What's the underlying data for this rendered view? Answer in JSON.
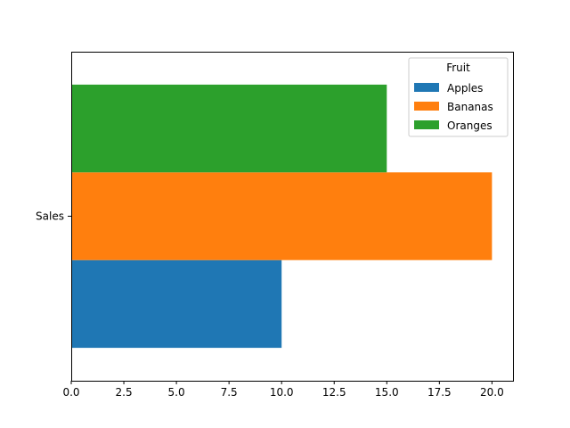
{
  "chart_data": {
    "type": "bar",
    "orientation": "horizontal",
    "categories": [
      "Sales"
    ],
    "series": [
      {
        "name": "Apples",
        "values": [
          10
        ],
        "color": "#1f77b4"
      },
      {
        "name": "Bananas",
        "values": [
          20
        ],
        "color": "#ff7f0e"
      },
      {
        "name": "Oranges",
        "values": [
          15
        ],
        "color": "#2ca02c"
      }
    ],
    "xlim": [
      0,
      21
    ],
    "xticks": [
      "0.0",
      "2.5",
      "5.0",
      "7.5",
      "10.0",
      "12.5",
      "15.0",
      "17.5",
      "20.0"
    ],
    "title": "",
    "xlabel": "",
    "ylabel": "",
    "legend": {
      "title": "Fruit",
      "position": "top-right"
    },
    "grid": false
  }
}
